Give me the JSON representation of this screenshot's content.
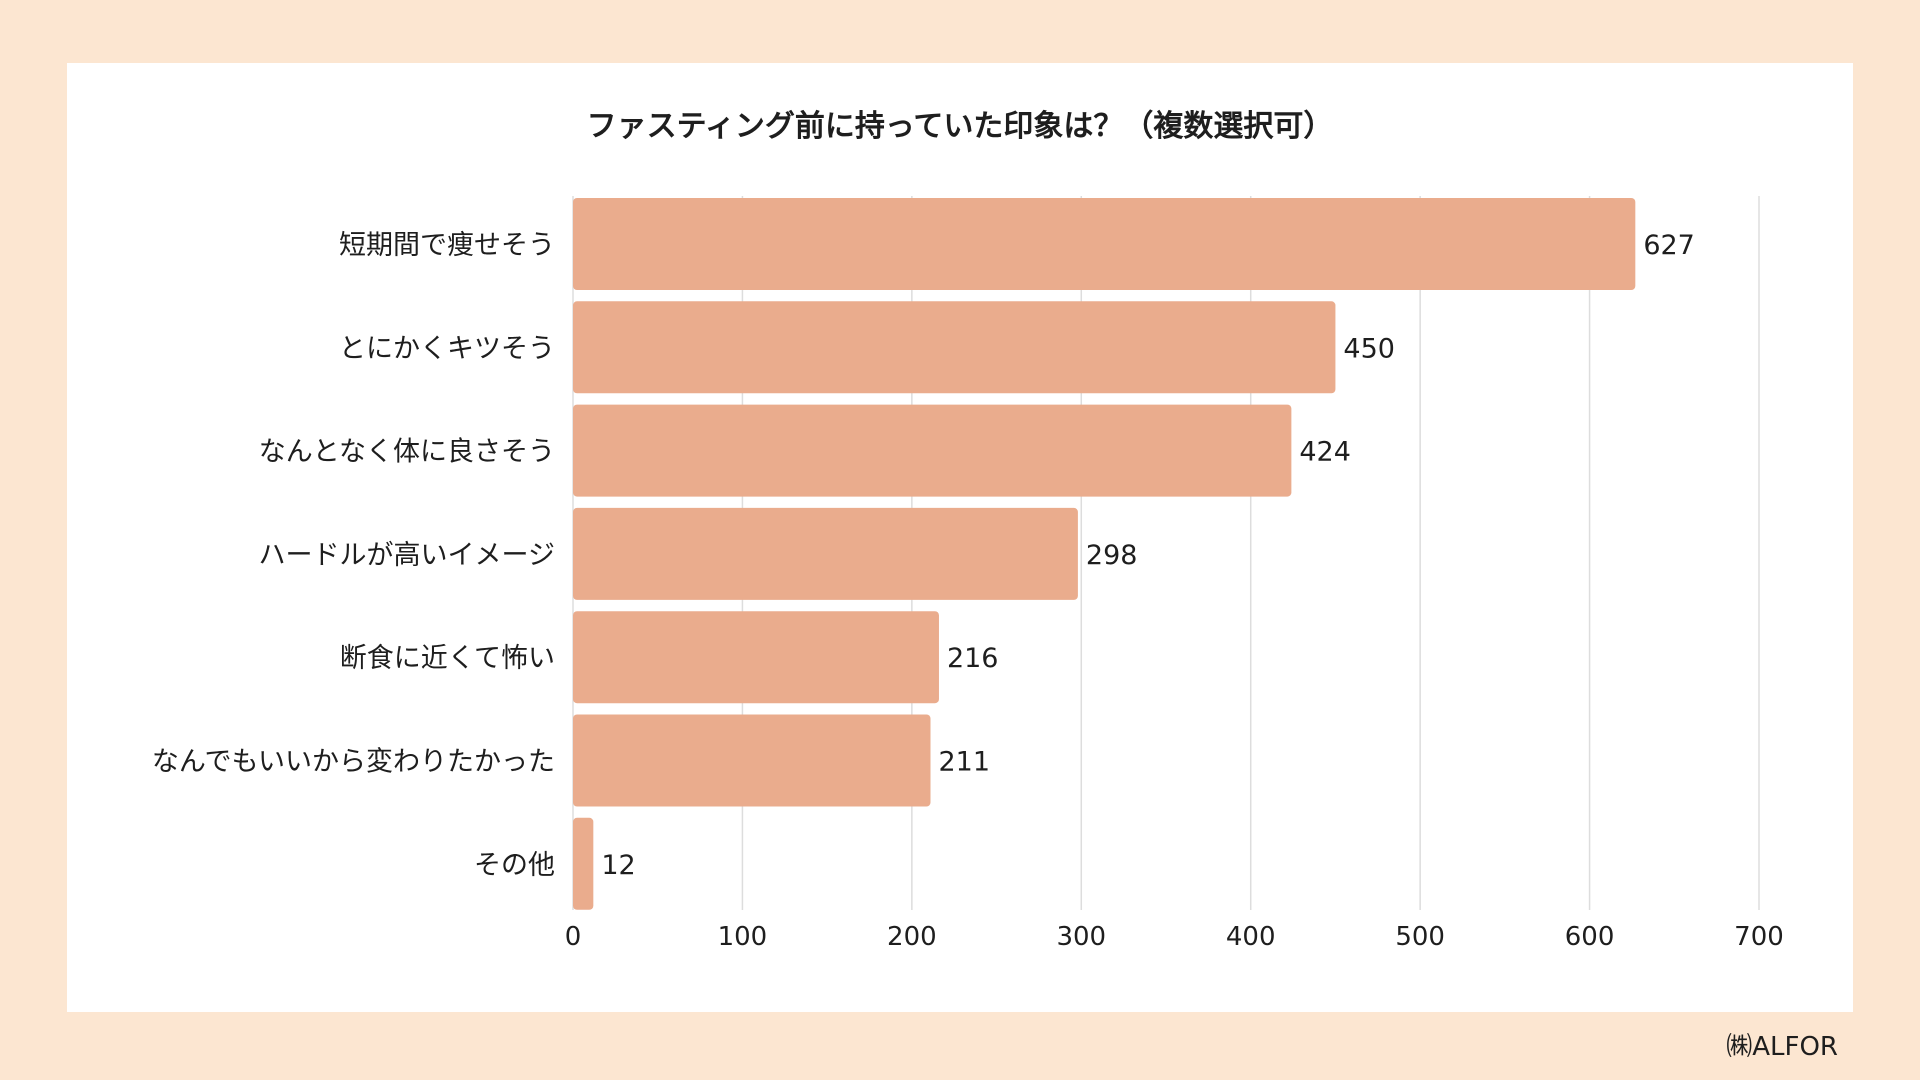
{
  "chart_data": {
    "type": "bar",
    "orientation": "horizontal",
    "title": "ファスティング前に持っていた印象は？（複数選択可）",
    "categories": [
      "短期間で痩せそう",
      "とにかくキツそう",
      "なんとなく体に良さそう",
      "ハードルが高いイメージ",
      "断食に近くて怖い",
      "なんでもいいから変わりたかった",
      "その他"
    ],
    "values": [
      627,
      450,
      424,
      298,
      216,
      211,
      12
    ],
    "xlim": [
      0,
      700
    ],
    "xticks": [
      0,
      100,
      200,
      300,
      400,
      500,
      600,
      700
    ],
    "xlabel": "",
    "ylabel": "",
    "grid": "vertical",
    "legend": "none",
    "bar_color": "#EAAC8D",
    "grid_color": "#DDDDDD"
  },
  "colors": {
    "page_background": "#FCE6D1",
    "card_background": "#FFFFFF",
    "text": "#1E1E1E"
  },
  "footer": {
    "credit": "㈱ALFOR"
  }
}
